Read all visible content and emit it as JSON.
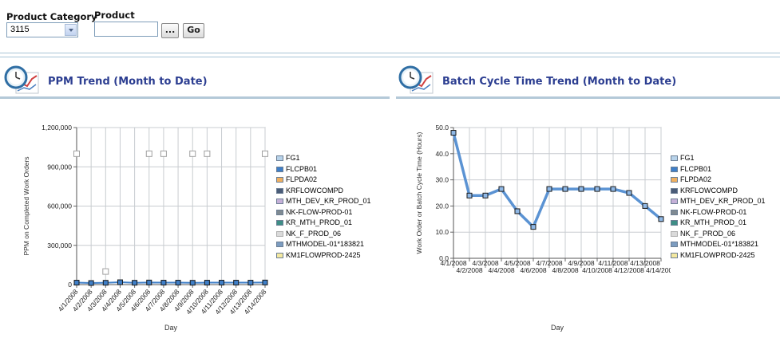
{
  "filters": {
    "category_label": "Product Category",
    "category_value": "3115",
    "product_label": "Product",
    "product_value": "",
    "browse_label": "...",
    "go_label": "Go"
  },
  "panels": {
    "ppm": {
      "title": "PPM Trend (Month to Date)"
    },
    "bct": {
      "title": "Batch Cycle Time Trend (Month to Date)"
    }
  },
  "legend": [
    {
      "name": "FG1",
      "color": "#b8d3ea"
    },
    {
      "name": "FLCPB01",
      "color": "#3f7fc8"
    },
    {
      "name": "FLPDA02",
      "color": "#f0b060"
    },
    {
      "name": "KRFLOWCOMPD",
      "color": "#4a5c78"
    },
    {
      "name": "MTH_DEV_KR_PROD_01",
      "color": "#c5b0d8"
    },
    {
      "name": "NK-FLOW-PROD-01",
      "color": "#7f8a92"
    },
    {
      "name": "KR_MTH_PROD_01",
      "color": "#3e8e86"
    },
    {
      "name": "NK_F_PROD_06",
      "color": "#dadada"
    },
    {
      "name": "MTHMODEL-01*183821",
      "color": "#7c9cc0"
    },
    {
      "name": "KM1FLOWPROD-2425",
      "color": "#f3e8a0"
    }
  ],
  "chart_data": [
    {
      "type": "line",
      "title": "PPM Trend (Month to Date)",
      "xlabel": "Day",
      "ylabel": "PPM on Completed Work Orders",
      "categories": [
        "4/1/2008",
        "4/2/2008",
        "4/3/2008",
        "4/4/2008",
        "4/5/2008",
        "4/6/2008",
        "4/7/2008",
        "4/8/2008",
        "4/9/2008",
        "4/10/2008",
        "4/11/2008",
        "4/12/2008",
        "4/13/2008",
        "4/14/2008"
      ],
      "ylim": [
        0,
        1200000
      ],
      "yticks": [
        0,
        300000,
        600000,
        900000,
        1200000
      ],
      "ytick_labels": [
        "0",
        "300,000",
        "600,000",
        "900,000",
        "1,200,000"
      ],
      "series": [
        {
          "name": "FLCPB01",
          "color": "#3f7fc8",
          "values": [
            15000,
            12000,
            14000,
            18000,
            14000,
            16000,
            15000,
            15000,
            14000,
            15000,
            15000,
            15000,
            15000,
            16000
          ]
        },
        {
          "name": "NK_F_PROD_06",
          "color": "#dadada",
          "values": [
            1000000,
            null,
            100000,
            null,
            null,
            1000000,
            1000000,
            null,
            1000000,
            1000000,
            null,
            null,
            null,
            1000000
          ]
        }
      ]
    },
    {
      "type": "line",
      "title": "Batch Cycle Time Trend (Month to Date)",
      "xlabel": "Day",
      "ylabel": "Work Order or Batch Cycle Time (Hours)",
      "categories": [
        "4/1/2008",
        "4/2/2008",
        "4/3/2008",
        "4/4/2008",
        "4/5/2008",
        "4/6/2008",
        "4/7/2008",
        "4/8/2008",
        "4/9/2008",
        "4/10/2008",
        "4/11/2008",
        "4/12/2008",
        "4/13/2008",
        "4/14/2008"
      ],
      "ylim": [
        0,
        50
      ],
      "yticks": [
        0,
        10,
        20,
        30,
        40,
        50
      ],
      "ytick_labels": [
        "0.0",
        "10.0",
        "20.0",
        "30.0",
        "40.0",
        "50.0"
      ],
      "series": [
        {
          "name": "FLCPB01",
          "color": "#5b93d3",
          "values": [
            48,
            24,
            24,
            26.5,
            18,
            12,
            26.5,
            26.5,
            26.5,
            26.5,
            26.5,
            25,
            20,
            15
          ]
        }
      ]
    }
  ]
}
